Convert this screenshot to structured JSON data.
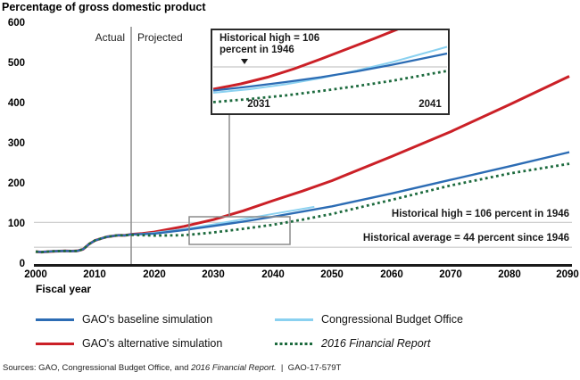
{
  "title": "Percentage of gross domestic product",
  "axes": {
    "y_ticks": [
      "600",
      "500",
      "400",
      "300",
      "200",
      "100",
      "0"
    ],
    "x_ticks": [
      "2000",
      "2010",
      "2020",
      "2030",
      "2040",
      "2050",
      "2060",
      "2070",
      "2080",
      "2090"
    ],
    "x_label": "Fiscal year"
  },
  "period_labels": {
    "actual": "Actual",
    "projected": "Projected"
  },
  "annotations": {
    "historical_high": "Historical high = 106 percent in 1946",
    "historical_average": "Historical average = 44 percent since 1946"
  },
  "inset": {
    "callout_line1": "Historical high = 106",
    "callout_line2": "percent in 1946",
    "marker_icon": "down-triangle-marker",
    "x_ticks": [
      "2031",
      "2041"
    ]
  },
  "legend": [
    {
      "label": "GAO's baseline simulation",
      "color": "#2c6cb4",
      "style": "solid",
      "italic": false
    },
    {
      "label": "GAO's alternative simulation",
      "color": "#cb2027",
      "style": "solid",
      "italic": false
    },
    {
      "label": "Congressional Budget Office",
      "color": "#8ad1f0",
      "style": "solid",
      "italic": false
    },
    {
      "label": "2016 Financial Report",
      "color": "#1c6a3d",
      "style": "dotted",
      "italic": true
    }
  ],
  "source_line": {
    "prefix": "Sources: GAO, Congressional Budget Office, and ",
    "italic": "2016 Financial Report.",
    "suffix": "  |  GAO-17-579T"
  },
  "chart_data": {
    "type": "line",
    "title": "Percentage of gross domestic product",
    "xlabel": "Fiscal year",
    "ylabel": "Percentage of gross domestic product",
    "xlim": [
      2000,
      2090
    ],
    "ylim": [
      0,
      600
    ],
    "y_tick_step": 100,
    "grid": "reference-lines-only",
    "legend_position": "below",
    "projection_divider_year": 2016,
    "reference_lines": [
      {
        "value": 106,
        "label": "Historical high = 106 percent in 1946"
      },
      {
        "value": 44,
        "label": "Historical average = 44 percent since 1946"
      }
    ],
    "inset_view": {
      "x_range": [
        2026,
        2043
      ],
      "y_range": [
        53,
        120
      ],
      "tick_years": [
        2031,
        2041
      ]
    },
    "series": [
      {
        "name": "gao-alternative",
        "label": "GAO's alternative simulation",
        "color": "#cb2027",
        "style": "solid",
        "width": 3,
        "points": [
          [
            2000,
            33
          ],
          [
            2001,
            32
          ],
          [
            2002,
            33
          ],
          [
            2003,
            34
          ],
          [
            2004,
            34.5
          ],
          [
            2005,
            35
          ],
          [
            2006,
            34.5
          ],
          [
            2007,
            35
          ],
          [
            2008,
            39
          ],
          [
            2009,
            52
          ],
          [
            2010,
            61
          ],
          [
            2011,
            65.5
          ],
          [
            2012,
            70
          ],
          [
            2013,
            72
          ],
          [
            2014,
            74
          ],
          [
            2015,
            73.5
          ],
          [
            2016,
            76
          ],
          [
            2018,
            78.5
          ],
          [
            2020,
            82
          ],
          [
            2025,
            96
          ],
          [
            2030,
            113
          ],
          [
            2035,
            135
          ],
          [
            2040,
            160
          ],
          [
            2045,
            184
          ],
          [
            2050,
            210
          ],
          [
            2060,
            270
          ],
          [
            2070,
            332
          ],
          [
            2080,
            400
          ],
          [
            2090,
            470
          ]
        ]
      },
      {
        "name": "cbo",
        "label": "Congressional Budget Office",
        "color": "#8ad1f0",
        "style": "solid",
        "width": 2,
        "points": [
          [
            2016,
            76
          ],
          [
            2018,
            77.5
          ],
          [
            2020,
            80
          ],
          [
            2025,
            89
          ],
          [
            2030,
            101
          ],
          [
            2035,
            114
          ],
          [
            2040,
            127
          ],
          [
            2044,
            137
          ],
          [
            2047,
            145
          ]
        ]
      },
      {
        "name": "gao-baseline",
        "label": "GAO's baseline simulation",
        "color": "#2c6cb4",
        "style": "solid",
        "width": 2.4,
        "points": [
          [
            2000,
            33
          ],
          [
            2001,
            32
          ],
          [
            2002,
            33
          ],
          [
            2003,
            34
          ],
          [
            2004,
            34.5
          ],
          [
            2005,
            35
          ],
          [
            2006,
            34.5
          ],
          [
            2007,
            35
          ],
          [
            2008,
            39
          ],
          [
            2009,
            52
          ],
          [
            2010,
            61
          ],
          [
            2011,
            65.5
          ],
          [
            2012,
            70
          ],
          [
            2013,
            72
          ],
          [
            2014,
            74
          ],
          [
            2015,
            73.5
          ],
          [
            2016,
            76
          ],
          [
            2018,
            77
          ],
          [
            2020,
            78
          ],
          [
            2025,
            87
          ],
          [
            2030,
            97
          ],
          [
            2035,
            108
          ],
          [
            2040,
            120
          ],
          [
            2045,
            133
          ],
          [
            2050,
            146
          ],
          [
            2060,
            178
          ],
          [
            2070,
            212
          ],
          [
            2080,
            246
          ],
          [
            2090,
            281
          ]
        ]
      },
      {
        "name": "financial-report-2016",
        "label": "2016 Financial Report",
        "color": "#1c6a3d",
        "style": "dotted",
        "width": 2.8,
        "points": [
          [
            2000,
            33
          ],
          [
            2001,
            32
          ],
          [
            2002,
            33
          ],
          [
            2003,
            34
          ],
          [
            2004,
            34.5
          ],
          [
            2005,
            35
          ],
          [
            2006,
            34.5
          ],
          [
            2007,
            35
          ],
          [
            2008,
            39
          ],
          [
            2009,
            52
          ],
          [
            2010,
            61
          ],
          [
            2011,
            65.5
          ],
          [
            2012,
            70
          ],
          [
            2013,
            72
          ],
          [
            2014,
            74
          ],
          [
            2015,
            73.5
          ],
          [
            2016,
            75
          ],
          [
            2018,
            74
          ],
          [
            2020,
            73
          ],
          [
            2025,
            74
          ],
          [
            2030,
            81
          ],
          [
            2035,
            90
          ],
          [
            2040,
            100
          ],
          [
            2045,
            113
          ],
          [
            2050,
            127
          ],
          [
            2060,
            162
          ],
          [
            2070,
            198
          ],
          [
            2080,
            228
          ],
          [
            2090,
            252
          ]
        ]
      }
    ]
  }
}
